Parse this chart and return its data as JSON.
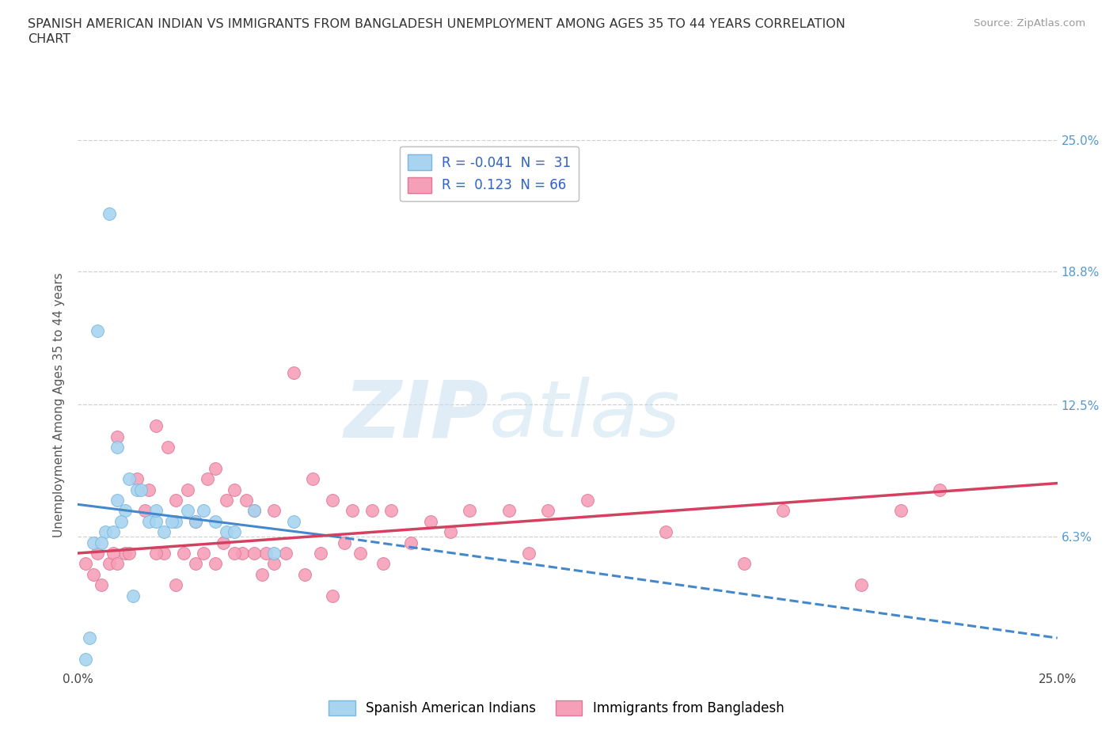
{
  "title_line1": "SPANISH AMERICAN INDIAN VS IMMIGRANTS FROM BANGLADESH UNEMPLOYMENT AMONG AGES 35 TO 44 YEARS CORRELATION",
  "title_line2": "CHART",
  "source": "Source: ZipAtlas.com",
  "ylabel": "Unemployment Among Ages 35 to 44 years",
  "ytick_values": [
    0.0,
    6.3,
    12.5,
    18.8,
    25.0
  ],
  "ytick_labels_right": [
    "",
    "6.3%",
    "12.5%",
    "18.8%",
    "25.0%"
  ],
  "xlim": [
    0.0,
    25.0
  ],
  "ylim": [
    0.0,
    25.0
  ],
  "watermark_zip": "ZIP",
  "watermark_atlas": "atlas",
  "legend_label_1": "Spanish American Indians",
  "legend_label_2": "Immigrants from Bangladesh",
  "R1": -0.041,
  "N1": 31,
  "R2": 0.123,
  "N2": 66,
  "color1": "#a8d4f0",
  "color1_edge": "#7ab8e0",
  "color2": "#f5a0b8",
  "color2_edge": "#e07898",
  "scatter1_x": [
    0.3,
    0.8,
    0.5,
    1.0,
    1.2,
    1.5,
    1.8,
    2.0,
    2.2,
    2.5,
    2.8,
    3.0,
    3.2,
    3.5,
    3.8,
    4.0,
    4.5,
    5.0,
    0.4,
    0.7,
    1.0,
    1.3,
    1.6,
    2.0,
    2.4,
    0.6,
    0.9,
    1.1,
    1.4,
    5.5,
    0.2
  ],
  "scatter1_y": [
    1.5,
    21.5,
    16.0,
    10.5,
    7.5,
    8.5,
    7.0,
    7.0,
    6.5,
    7.0,
    7.5,
    7.0,
    7.5,
    7.0,
    6.5,
    6.5,
    7.5,
    5.5,
    6.0,
    6.5,
    8.0,
    9.0,
    8.5,
    7.5,
    7.0,
    6.0,
    6.5,
    7.0,
    3.5,
    7.0,
    0.5
  ],
  "scatter2_x": [
    0.2,
    0.4,
    0.6,
    0.8,
    1.0,
    1.2,
    1.5,
    1.8,
    2.0,
    2.3,
    2.5,
    2.8,
    3.0,
    3.3,
    3.5,
    3.8,
    4.0,
    4.3,
    4.5,
    5.0,
    5.5,
    6.0,
    6.5,
    7.0,
    7.5,
    8.0,
    9.0,
    10.0,
    11.0,
    12.0,
    13.0,
    15.0,
    17.0,
    18.0,
    20.0,
    21.0,
    22.0,
    0.5,
    0.9,
    1.3,
    1.7,
    2.2,
    2.7,
    3.2,
    3.7,
    4.2,
    4.8,
    5.3,
    6.2,
    7.2,
    8.5,
    1.0,
    2.0,
    3.0,
    4.0,
    5.0,
    6.8,
    7.8,
    9.5,
    11.5,
    4.5,
    5.8,
    3.5,
    4.7,
    2.5,
    6.5
  ],
  "scatter2_y": [
    5.0,
    4.5,
    4.0,
    5.0,
    11.0,
    5.5,
    9.0,
    8.5,
    11.5,
    10.5,
    8.0,
    8.5,
    7.0,
    9.0,
    9.5,
    8.0,
    8.5,
    8.0,
    7.5,
    7.5,
    14.0,
    9.0,
    8.0,
    7.5,
    7.5,
    7.5,
    7.0,
    7.5,
    7.5,
    7.5,
    8.0,
    6.5,
    5.0,
    7.5,
    4.0,
    7.5,
    8.5,
    5.5,
    5.5,
    5.5,
    7.5,
    5.5,
    5.5,
    5.5,
    6.0,
    5.5,
    5.5,
    5.5,
    5.5,
    5.5,
    6.0,
    5.0,
    5.5,
    5.0,
    5.5,
    5.0,
    6.0,
    5.0,
    6.5,
    5.5,
    5.5,
    4.5,
    5.0,
    4.5,
    4.0,
    3.5
  ],
  "trend1_x0": 0.0,
  "trend1_x1": 6.5,
  "trend1_y0": 7.8,
  "trend1_y1": 6.3,
  "trend1_extend_x": 25.0,
  "trend1_extend_y": 1.5,
  "trend2_x0": 0.0,
  "trend2_x1": 25.0,
  "trend2_y0": 5.5,
  "trend2_y1": 8.8,
  "background_color": "#ffffff",
  "grid_color": "#d0d0d0",
  "right_tick_color": "#5599cc",
  "title_fontsize": 11.5,
  "axis_fontsize": 11
}
